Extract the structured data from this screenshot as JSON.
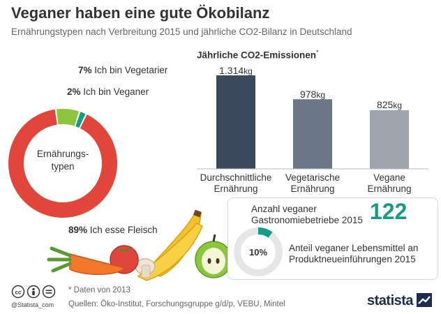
{
  "title": "Veganer haben eine gute Ökobilanz",
  "subtitle": "Ernährungstypen nach Verbreitung 2015 und jährliche CO2-Bilanz in Deutschland",
  "colors": {
    "meat": "#e0463a",
    "vegetarian": "#8cc63f",
    "vegan": "#169b86",
    "bar1": "#3a4a5c",
    "bar2": "#6b7786",
    "bar3": "#9ea5ae",
    "accent": "#169b86"
  },
  "chart_data": [
    {
      "type": "pie",
      "title": "",
      "center_label": "Ernährungs-\ntypen",
      "slices": [
        {
          "label": "Ich esse Fleisch",
          "value": 89,
          "display": "89%"
        },
        {
          "label": "Ich bin Vegetarier",
          "value": 7,
          "display": "7%"
        },
        {
          "label": "Ich bin Veganer",
          "value": 2,
          "display": "2%"
        }
      ]
    },
    {
      "type": "bar",
      "title": "Jährliche CO2-Emissionen",
      "title_marker": "*",
      "categories": [
        "Durchschnittliche Ernährung",
        "Vegetarische Ernährung",
        "Vegane Ernährung"
      ],
      "category_lines": [
        [
          "Durchschnittliche",
          "Ernährung"
        ],
        [
          "Vegetarische",
          "Ernährung"
        ],
        [
          "Vegane",
          "Ernährung"
        ]
      ],
      "values": [
        1314,
        978,
        825
      ],
      "value_labels": [
        "1.314",
        "978",
        "825"
      ],
      "unit": "kg",
      "ylim": [
        0,
        1400
      ]
    }
  ],
  "stats": {
    "gastro_label": "Anzahl veganer Gastronomiebetriebe 2015",
    "gastro_value": "122",
    "share_label": "Anteil veganer Lebensmittel an Produktneueinführungen 2015",
    "share_value": 10,
    "share_display": "10%"
  },
  "footer": {
    "note": "* Daten von 2013",
    "sources": "Quellen: Öko-Institut, Forschungsgruppe g/d/p, VEBU, Mintel",
    "handle": "@Statista_com",
    "brand": "statista"
  }
}
